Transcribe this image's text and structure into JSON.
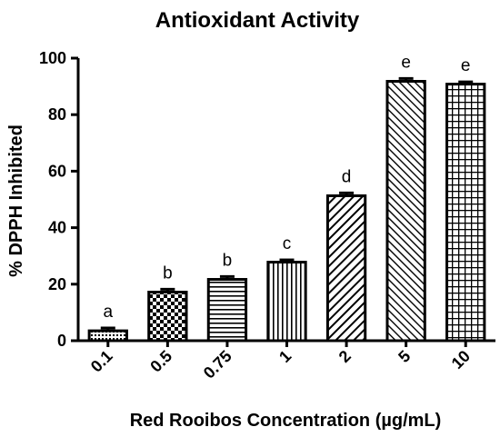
{
  "chart_data": {
    "type": "bar",
    "title": "Antioxidant Activity",
    "xlabel": "Red Rooibos Concentration (µg/mL)",
    "ylabel": "% DPPH Inhibited",
    "ylim": [
      0,
      100
    ],
    "yticks": [
      "0",
      "20",
      "40",
      "60",
      "80",
      "100"
    ],
    "categories": [
      "0.1",
      "0.5",
      "0.75",
      "1",
      "2",
      "5",
      "10"
    ],
    "values": [
      3.5,
      17.2,
      21.7,
      27.8,
      51.3,
      91.8,
      90.8
    ],
    "errors": [
      1.0,
      1.0,
      1.0,
      0.8,
      1.0,
      1.0,
      0.8
    ],
    "significance_labels": [
      "a",
      "b",
      "b",
      "c",
      "d",
      "e",
      "e"
    ],
    "patterns": [
      "dots",
      "checker",
      "horizontal",
      "vertical",
      "diagonal-up",
      "diagonal-down",
      "grid"
    ],
    "bar_color": "#000000",
    "background": "#ffffff",
    "grid": false,
    "legend": "none"
  }
}
